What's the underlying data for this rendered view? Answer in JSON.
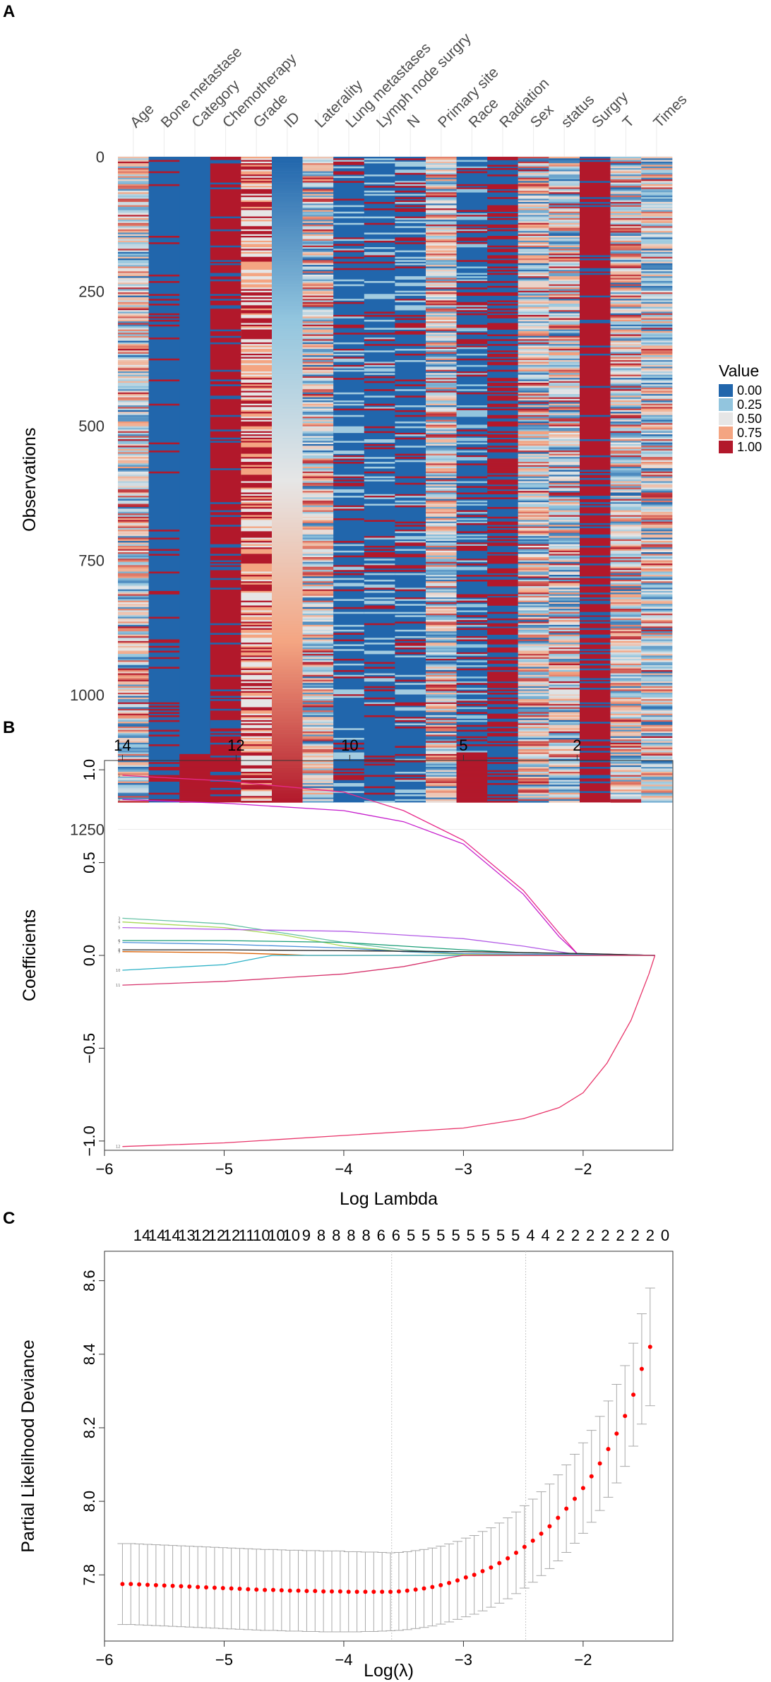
{
  "panels": {
    "a": "A",
    "b": "B",
    "c": "C"
  },
  "chart_data": [
    {
      "type": "heatmap",
      "panel": "A",
      "columns": [
        "Age",
        "Bone metastase",
        "Category",
        "Chemotherapy",
        "Grade",
        "ID",
        "Laterality",
        "Lung metastases",
        "Lymph node surgry",
        "N",
        "Primary site",
        "Race",
        "Radiation",
        "Sex",
        "status",
        "Surgry",
        "T",
        "Times"
      ],
      "column_base_value": [
        0.5,
        0.0,
        0.0,
        1.0,
        0.72,
        0.5,
        0.45,
        0.0,
        0.0,
        0.0,
        0.4,
        0.0,
        0.0,
        0.25,
        0.3,
        1.0,
        0.3,
        0.5
      ],
      "ylabel": "Observations",
      "yticks": [
        "0",
        "250",
        "500",
        "750",
        "1000",
        "1250"
      ],
      "ylim": [
        0,
        1250
      ],
      "n_observations": 1200,
      "legend_title": "Value",
      "legend_values": [
        "0.00",
        "0.25",
        "0.50",
        "0.75",
        "1.00"
      ],
      "color_scale": [
        "#2166ac",
        "#92c5de",
        "#e6e6e6",
        "#f4a582",
        "#b2182b"
      ]
    },
    {
      "type": "line",
      "panel": "B",
      "title": "",
      "xlabel": "Log Lambda",
      "ylabel": "Coefficients",
      "xlim": [
        -6,
        -1.25
      ],
      "ylim": [
        -1.05,
        1.05
      ],
      "xticks": [
        "−6",
        "−5",
        "−4",
        "−3",
        "−2"
      ],
      "yticks": [
        "−1.0",
        "−0.5",
        "0.0",
        "0.5",
        "1.0"
      ],
      "top_axis_ticks": [
        "14",
        "12",
        "10",
        "5",
        "2"
      ],
      "top_axis_positions": [
        -5.85,
        -4.9,
        -3.95,
        -3.0,
        -2.05
      ],
      "series": [
        {
          "name": "1",
          "color": "#e7298a",
          "points": [
            [
              -5.85,
              0.97
            ],
            [
              -5,
              0.94
            ],
            [
              -4,
              0.88
            ],
            [
              -3.5,
              0.78
            ],
            [
              -3,
              0.62
            ],
            [
              -2.5,
              0.35
            ],
            [
              -2.2,
              0.12
            ],
            [
              -2.05,
              0.01
            ],
            [
              -1.4,
              0.0
            ]
          ]
        },
        {
          "name": "2",
          "color": "#c51bcc",
          "points": [
            [
              -5.85,
              0.84
            ],
            [
              -5,
              0.82
            ],
            [
              -4,
              0.78
            ],
            [
              -3.5,
              0.72
            ],
            [
              -3,
              0.6
            ],
            [
              -2.5,
              0.33
            ],
            [
              -2.2,
              0.1
            ],
            [
              -2.05,
              0.01
            ],
            [
              -1.4,
              0.0
            ]
          ]
        },
        {
          "name": "3",
          "color": "#66c2a5",
          "points": [
            [
              -5.85,
              0.2
            ],
            [
              -5,
              0.17
            ],
            [
              -4.5,
              0.12
            ],
            [
              -4,
              0.07
            ],
            [
              -3.5,
              0.03
            ],
            [
              -3,
              0.01
            ],
            [
              -1.4,
              0.0
            ]
          ]
        },
        {
          "name": "4",
          "color": "#a6d854",
          "points": [
            [
              -5.85,
              0.18
            ],
            [
              -5,
              0.15
            ],
            [
              -4.5,
              0.11
            ],
            [
              -4,
              0.05
            ],
            [
              -3.5,
              0.02
            ],
            [
              -3,
              0.005
            ],
            [
              -1.4,
              0.0
            ]
          ]
        },
        {
          "name": "5",
          "color": "#b35ce6",
          "points": [
            [
              -5.85,
              0.15
            ],
            [
              -5,
              0.14
            ],
            [
              -4,
              0.13
            ],
            [
              -3.5,
              0.11
            ],
            [
              -3,
              0.09
            ],
            [
              -2.5,
              0.05
            ],
            [
              -2.1,
              0.01
            ],
            [
              -1.4,
              0.0
            ]
          ]
        },
        {
          "name": "6",
          "color": "#1b9e77",
          "points": [
            [
              -5.85,
              0.08
            ],
            [
              -5,
              0.08
            ],
            [
              -4,
              0.07
            ],
            [
              -3.5,
              0.05
            ],
            [
              -3,
              0.03
            ],
            [
              -2.5,
              0.015
            ],
            [
              -1.4,
              0.0
            ]
          ]
        },
        {
          "name": "7",
          "color": "#4a90d9",
          "points": [
            [
              -5.85,
              0.07
            ],
            [
              -5,
              0.06
            ],
            [
              -4,
              0.04
            ],
            [
              -3.5,
              0.02
            ],
            [
              -3,
              0.01
            ],
            [
              -1.4,
              0.0
            ]
          ]
        },
        {
          "name": "8",
          "color": "#222222",
          "points": [
            [
              -5.85,
              0.03
            ],
            [
              -5,
              0.03
            ],
            [
              -4,
              0.025
            ],
            [
              -3,
              0.02
            ],
            [
              -2,
              0.01
            ],
            [
              -1.4,
              0.0
            ]
          ]
        },
        {
          "name": "9",
          "color": "#d95f02",
          "points": [
            [
              -5.85,
              0.02
            ],
            [
              -5,
              0.015
            ],
            [
              -4.5,
              0.005
            ],
            [
              -4.3,
              0.0
            ],
            [
              -1.4,
              0.0
            ]
          ]
        },
        {
          "name": "10",
          "color": "#2ab0c5",
          "points": [
            [
              -5.85,
              -0.08
            ],
            [
              -5,
              -0.05
            ],
            [
              -4.6,
              0.0
            ],
            [
              -1.4,
              0.0
            ]
          ]
        },
        {
          "name": "11",
          "color": "#d6336c",
          "points": [
            [
              -5.85,
              -0.16
            ],
            [
              -5,
              -0.14
            ],
            [
              -4,
              -0.1
            ],
            [
              -3.5,
              -0.06
            ],
            [
              -3.1,
              -0.01
            ],
            [
              -3,
              0.0
            ],
            [
              -1.4,
              0.0
            ]
          ]
        },
        {
          "name": "12",
          "color": "#e8356a",
          "points": [
            [
              -5.85,
              -1.03
            ],
            [
              -5,
              -1.01
            ],
            [
              -4,
              -0.97
            ],
            [
              -3,
              -0.93
            ],
            [
              -2.5,
              -0.88
            ],
            [
              -2.2,
              -0.82
            ],
            [
              -2,
              -0.74
            ],
            [
              -1.8,
              -0.58
            ],
            [
              -1.6,
              -0.35
            ],
            [
              -1.45,
              -0.1
            ],
            [
              -1.4,
              0.0
            ]
          ]
        }
      ]
    },
    {
      "type": "scatter",
      "panel": "C",
      "xlabel": "Log(λ)",
      "ylabel": "Partial Likelihood Deviance",
      "xlim": [
        -6,
        -1.25
      ],
      "ylim": [
        7.62,
        8.68
      ],
      "xticks": [
        "−6",
        "−5",
        "−4",
        "−3",
        "−2"
      ],
      "yticks": [
        "7.8",
        "8.0",
        "8.2",
        "8.4",
        "8.6"
      ],
      "top_counts": [
        "14",
        "14",
        "14",
        "13",
        "12",
        "12",
        "12",
        "11",
        "10",
        "10",
        "10",
        "9",
        "8",
        "8",
        "8",
        "8",
        "6",
        "6",
        "5",
        "5",
        "5",
        "5",
        "5",
        "5",
        "5",
        "5",
        "4",
        "4",
        "2",
        "2",
        "2",
        "2",
        "2",
        "2",
        "2",
        "0"
      ],
      "reference_lines": [
        -3.6,
        -2.48
      ],
      "series": [
        {
          "name": "cv deviance",
          "x": [
            -5.85,
            -5.78,
            -5.71,
            -5.64,
            -5.57,
            -5.5,
            -5.43,
            -5.36,
            -5.29,
            -5.22,
            -5.15,
            -5.08,
            -5.01,
            -4.94,
            -4.87,
            -4.8,
            -4.73,
            -4.66,
            -4.59,
            -4.52,
            -4.45,
            -4.38,
            -4.31,
            -4.24,
            -4.17,
            -4.1,
            -4.03,
            -3.96,
            -3.89,
            -3.82,
            -3.75,
            -3.68,
            -3.61,
            -3.54,
            -3.47,
            -3.4,
            -3.33,
            -3.26,
            -3.19,
            -3.12,
            -3.05,
            -2.98,
            -2.91,
            -2.84,
            -2.77,
            -2.7,
            -2.63,
            -2.56,
            -2.49,
            -2.42,
            -2.35,
            -2.28,
            -2.21,
            -2.14,
            -2.07,
            -2,
            -1.93,
            -1.86,
            -1.79,
            -1.72,
            -1.65,
            -1.58,
            -1.51,
            -1.44
          ],
          "mean": [
            7.775,
            7.775,
            7.774,
            7.773,
            7.772,
            7.771,
            7.77,
            7.769,
            7.768,
            7.767,
            7.766,
            7.765,
            7.764,
            7.763,
            7.762,
            7.761,
            7.76,
            7.759,
            7.759,
            7.758,
            7.757,
            7.757,
            7.756,
            7.756,
            7.755,
            7.755,
            7.755,
            7.754,
            7.754,
            7.754,
            7.754,
            7.754,
            7.754,
            7.755,
            7.757,
            7.76,
            7.763,
            7.767,
            7.772,
            7.778,
            7.785,
            7.793,
            7.8,
            7.81,
            7.82,
            7.832,
            7.845,
            7.86,
            7.876,
            7.893,
            7.912,
            7.932,
            7.955,
            7.98,
            8.007,
            8.036,
            8.068,
            8.103,
            8.142,
            8.184,
            8.232,
            8.29,
            8.36,
            8.42
          ],
          "lower": [
            7.665,
            7.665,
            7.664,
            7.663,
            7.662,
            7.661,
            7.66,
            7.659,
            7.658,
            7.657,
            7.656,
            7.655,
            7.654,
            7.653,
            7.652,
            7.651,
            7.65,
            7.649,
            7.649,
            7.648,
            7.647,
            7.647,
            7.646,
            7.646,
            7.645,
            7.645,
            7.645,
            7.645,
            7.645,
            7.646,
            7.646,
            7.647,
            7.648,
            7.649,
            7.651,
            7.654,
            7.657,
            7.661,
            7.666,
            7.672,
            7.679,
            7.686,
            7.693,
            7.702,
            7.712,
            7.723,
            7.735,
            7.749,
            7.764,
            7.78,
            7.798,
            7.817,
            7.838,
            7.861,
            7.886,
            7.913,
            7.943,
            7.975,
            8.011,
            8.05,
            8.095,
            8.15,
            8.21,
            8.26
          ],
          "upper": [
            7.885,
            7.885,
            7.884,
            7.883,
            7.882,
            7.881,
            7.88,
            7.879,
            7.878,
            7.877,
            7.876,
            7.875,
            7.874,
            7.873,
            7.872,
            7.871,
            7.87,
            7.869,
            7.869,
            7.868,
            7.867,
            7.867,
            7.866,
            7.866,
            7.865,
            7.865,
            7.865,
            7.863,
            7.863,
            7.862,
            7.862,
            7.861,
            7.86,
            7.861,
            7.863,
            7.866,
            7.869,
            7.873,
            7.878,
            7.884,
            7.891,
            7.9,
            7.907,
            7.918,
            7.928,
            7.941,
            7.955,
            7.971,
            7.988,
            8.006,
            8.026,
            8.047,
            8.072,
            8.099,
            8.128,
            8.159,
            8.193,
            8.231,
            8.273,
            8.318,
            8.369,
            8.43,
            8.51,
            8.58
          ]
        }
      ]
    }
  ]
}
